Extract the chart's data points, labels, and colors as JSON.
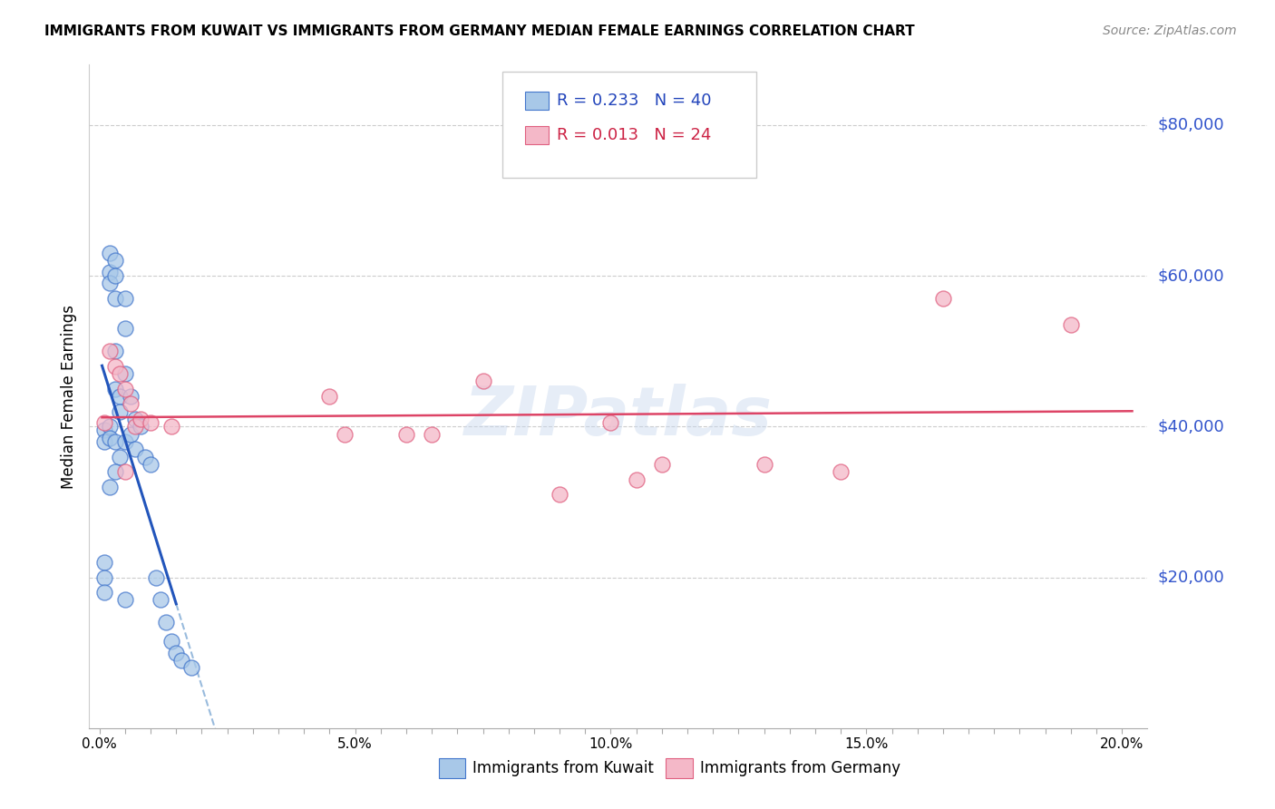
{
  "title": "IMMIGRANTS FROM KUWAIT VS IMMIGRANTS FROM GERMANY MEDIAN FEMALE EARNINGS CORRELATION CHART",
  "source": "Source: ZipAtlas.com",
  "ylabel": "Median Female Earnings",
  "x_tick_labels": [
    "0.0%",
    "",
    "",
    "",
    "",
    "",
    "",
    "",
    "",
    "",
    "5.0%",
    "",
    "",
    "",
    "",
    "",
    "",
    "",
    "",
    "",
    "10.0%",
    "",
    "",
    "",
    "",
    "",
    "",
    "",
    "",
    "",
    "15.0%",
    "",
    "",
    "",
    "",
    "",
    "",
    "",
    "",
    "",
    "20.0%"
  ],
  "x_tick_positions": [
    0.0,
    0.005,
    0.01,
    0.015,
    0.02,
    0.025,
    0.03,
    0.035,
    0.04,
    0.045,
    0.05,
    0.055,
    0.06,
    0.065,
    0.07,
    0.075,
    0.08,
    0.085,
    0.09,
    0.095,
    0.1,
    0.105,
    0.11,
    0.115,
    0.12,
    0.125,
    0.13,
    0.135,
    0.14,
    0.145,
    0.15,
    0.155,
    0.16,
    0.165,
    0.17,
    0.175,
    0.18,
    0.185,
    0.19,
    0.195,
    0.2
  ],
  "y_tick_labels": [
    "$20,000",
    "$40,000",
    "$60,000",
    "$80,000"
  ],
  "y_tick_positions": [
    20000,
    40000,
    60000,
    80000
  ],
  "ylim": [
    0,
    88000
  ],
  "xlim": [
    -0.002,
    0.205
  ],
  "color_kuwait": "#A8C8E8",
  "color_germany": "#F4B8C8",
  "color_kuwait_edge": "#4477CC",
  "color_germany_edge": "#E06080",
  "color_kuwait_line": "#2255BB",
  "color_germany_line": "#DD4466",
  "color_dashed": "#99BBDD",
  "watermark": "ZIPatlas",
  "kuwait_x": [
    0.001,
    0.001,
    0.001,
    0.001,
    0.001,
    0.002,
    0.002,
    0.002,
    0.002,
    0.002,
    0.003,
    0.003,
    0.003,
    0.003,
    0.003,
    0.003,
    0.004,
    0.004,
    0.004,
    0.005,
    0.005,
    0.005,
    0.005,
    0.005,
    0.006,
    0.006,
    0.007,
    0.007,
    0.008,
    0.009,
    0.01,
    0.011,
    0.012,
    0.013,
    0.014,
    0.015,
    0.016,
    0.018,
    0.002,
    0.003
  ],
  "kuwait_y": [
    39500,
    38000,
    22000,
    20000,
    18000,
    63000,
    60500,
    59000,
    40000,
    38500,
    62000,
    60000,
    57000,
    50000,
    45000,
    38000,
    44000,
    42000,
    36000,
    57000,
    53000,
    47000,
    38000,
    17000,
    44000,
    39000,
    41000,
    37000,
    40000,
    36000,
    35000,
    20000,
    17000,
    14000,
    11500,
    10000,
    9000,
    8000,
    32000,
    34000
  ],
  "germany_x": [
    0.001,
    0.002,
    0.003,
    0.004,
    0.005,
    0.005,
    0.006,
    0.007,
    0.008,
    0.01,
    0.014,
    0.045,
    0.048,
    0.06,
    0.065,
    0.075,
    0.09,
    0.1,
    0.105,
    0.11,
    0.13,
    0.145,
    0.165,
    0.19
  ],
  "germany_y": [
    40500,
    50000,
    48000,
    47000,
    45000,
    34000,
    43000,
    40000,
    41000,
    40500,
    40000,
    44000,
    39000,
    39000,
    39000,
    46000,
    31000,
    40500,
    33000,
    35000,
    35000,
    34000,
    57000,
    53500
  ]
}
